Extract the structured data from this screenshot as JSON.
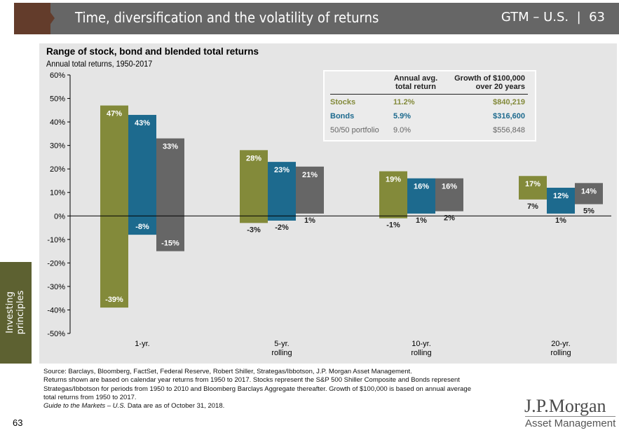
{
  "header": {
    "title": "Time, diversification and the volatility of returns",
    "badge": "GTM – U.S.  |  63"
  },
  "side_tab": {
    "line1": "Investing",
    "line2": "principles"
  },
  "table": {
    "col1": [
      "Annual avg.",
      "total return"
    ],
    "col2": [
      "Growth of $100,000",
      "over 20 years"
    ],
    "rows": [
      {
        "name": "Stocks",
        "ret": "11.2%",
        "growth": "$840,219",
        "color": "#838a3a"
      },
      {
        "name": "Bonds",
        "ret": "5.9%",
        "growth": "$316,600",
        "color": "#1d6a8e"
      },
      {
        "name": "50/50 portfolio",
        "ret": "9.0%",
        "growth": "$556,848",
        "color": "#666666"
      }
    ]
  },
  "chart_data": {
    "type": "bar",
    "title": "Range of stock, bond and blended total returns",
    "subtitle": "Annual total returns, 1950-2017",
    "ylim": [
      -50,
      60
    ],
    "yticks": [
      "60%",
      "50%",
      "40%",
      "30%",
      "20%",
      "10%",
      "0%",
      "-10%",
      "-20%",
      "-30%",
      "-40%",
      "-50%"
    ],
    "categories": [
      [
        "1-yr.",
        ""
      ],
      [
        "5-yr.",
        "rolling"
      ],
      [
        "10-yr.",
        "rolling"
      ],
      [
        "20-yr.",
        "rolling"
      ]
    ],
    "series": [
      {
        "name": "Stocks",
        "color": "#838a3a",
        "high": [
          47,
          28,
          19,
          17
        ],
        "low": [
          -39,
          -3,
          -1,
          7
        ]
      },
      {
        "name": "Bonds",
        "color": "#1d6a8e",
        "high": [
          43,
          23,
          16,
          12
        ],
        "low": [
          -8,
          -2,
          1,
          1
        ]
      },
      {
        "name": "50/50 portfolio",
        "color": "#666666",
        "high": [
          33,
          21,
          16,
          14
        ],
        "low": [
          -15,
          1,
          2,
          5
        ]
      }
    ]
  },
  "footer": {
    "lines": [
      "Source: Barclays, Bloomberg, FactSet, Federal Reserve, Robert Shiller, Strategas/Ibbotson, J.P. Morgan Asset Management.",
      "Returns shown are based on calendar year returns from 1950 to 2017. Stocks represent the S&P 500 Shiller Composite and Bonds represent",
      "Strategas/Ibbotson for periods from 1950 to 2010 and Bloomberg Barclays Aggregate thereafter. Growth of $100,000 is based on annual average",
      "total returns from 1950 to 2017."
    ],
    "guide_italic": "Guide to the Markets – U.S.",
    "guide_rest": " Data are as of October 31, 2018.",
    "page": "63"
  },
  "logo": {
    "name": "J.P.Morgan",
    "sub": "Asset Management"
  }
}
